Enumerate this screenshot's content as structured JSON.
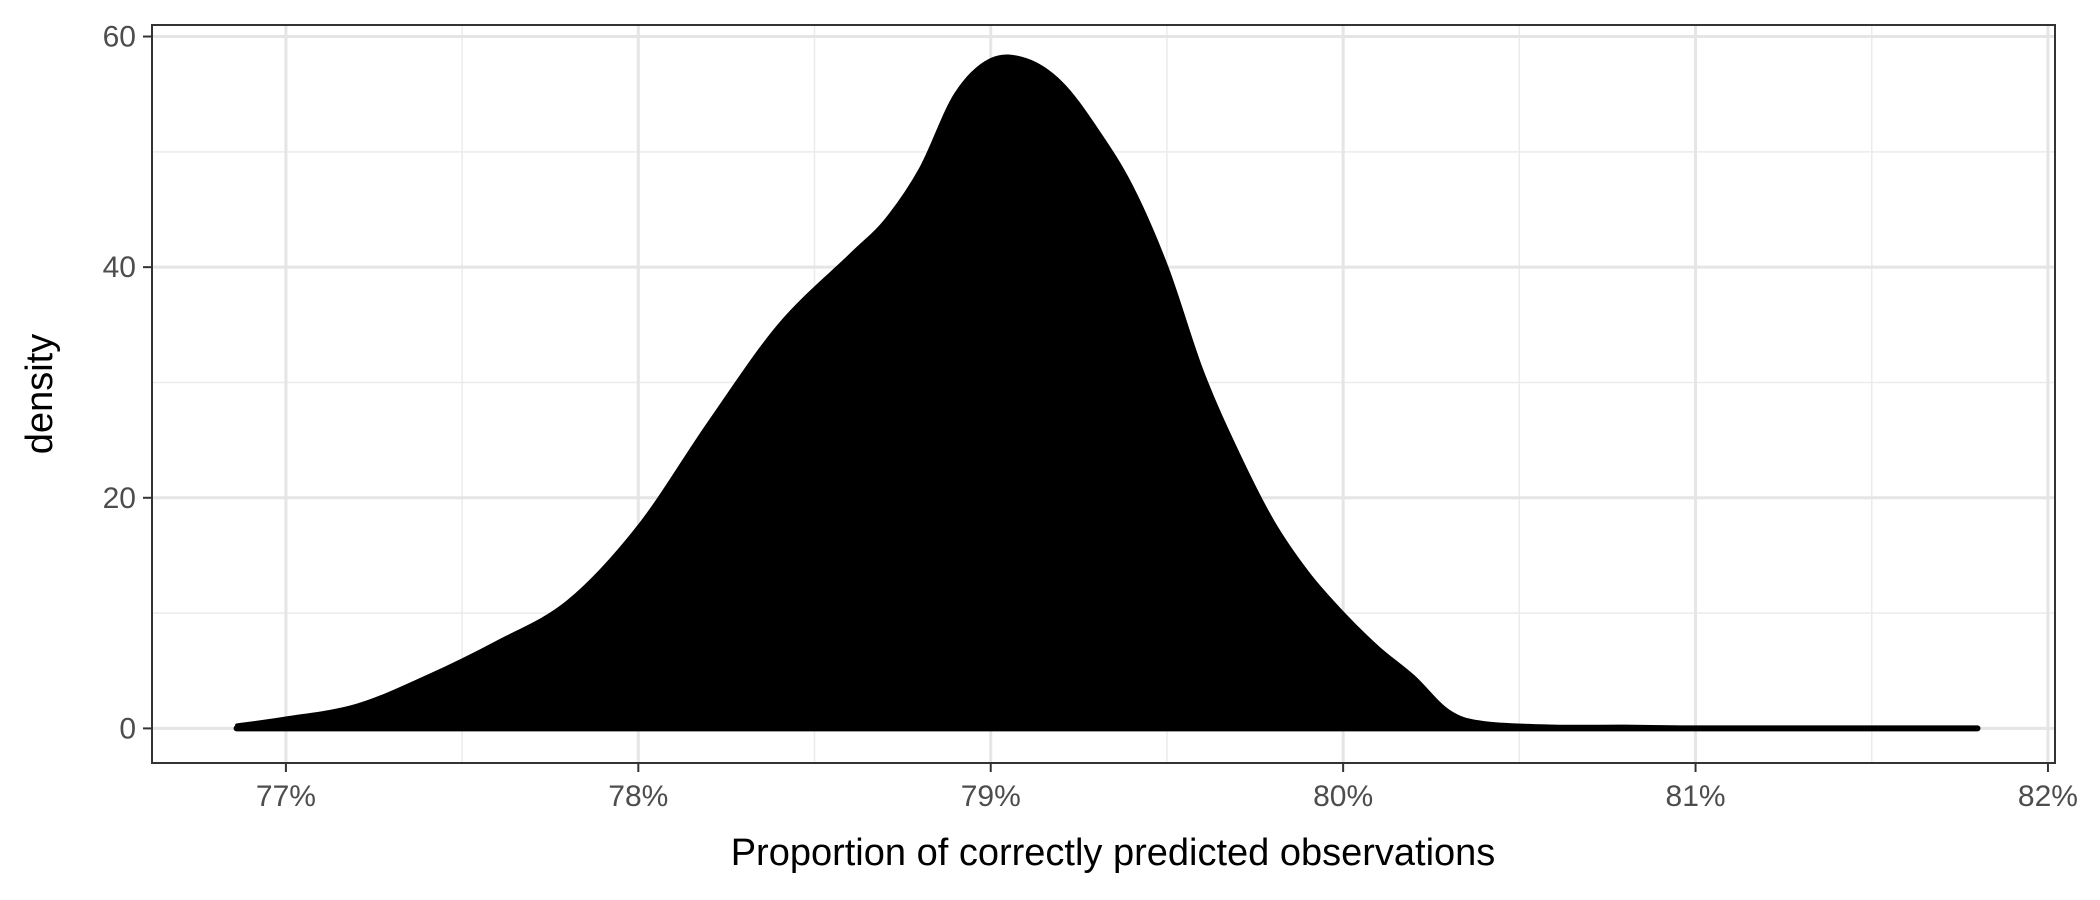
{
  "chart_data": {
    "type": "area",
    "title": "",
    "xlabel": "Proportion of correctly predicted observations",
    "ylabel": "density",
    "xlim": [
      0.7662,
      0.8202
    ],
    "ylim": [
      -3,
      61
    ],
    "x_ticks": [
      0.77,
      0.78,
      0.79,
      0.8,
      0.81,
      0.82
    ],
    "x_tick_labels": [
      "77%",
      "78%",
      "79%",
      "80%",
      "81%",
      "82%"
    ],
    "x_minor_ticks": [
      0.775,
      0.785,
      0.795,
      0.805,
      0.815
    ],
    "y_ticks": [
      0,
      20,
      40,
      60
    ],
    "y_tick_labels": [
      "0",
      "20",
      "40",
      "60"
    ],
    "y_minor_ticks": [
      10,
      30,
      50
    ],
    "grid": true,
    "legend": "none",
    "fill_color": "#000000",
    "series": [
      {
        "x": [
          0.7686,
          0.77,
          0.772,
          0.774,
          0.776,
          0.778,
          0.78,
          0.782,
          0.784,
          0.786,
          0.787,
          0.788,
          0.789,
          0.79,
          0.791,
          0.792,
          0.793,
          0.794,
          0.795,
          0.796,
          0.797,
          0.798,
          0.799,
          0.8,
          0.801,
          0.802,
          0.803,
          0.804,
          0.806,
          0.808,
          0.81,
          0.812,
          0.814,
          0.816,
          0.818
        ],
        "y": [
          0.3,
          0.9,
          2.0,
          4.5,
          7.5,
          11.0,
          17.5,
          26.5,
          35.0,
          41.0,
          44.0,
          48.5,
          55.0,
          58.0,
          58.0,
          56.0,
          52.0,
          47.0,
          40.0,
          31.0,
          24.0,
          18.0,
          13.5,
          10.0,
          7.0,
          4.5,
          1.5,
          0.5,
          0.2,
          0.2,
          0.1,
          0.1,
          0.1,
          0.1,
          0.1
        ]
      }
    ]
  }
}
